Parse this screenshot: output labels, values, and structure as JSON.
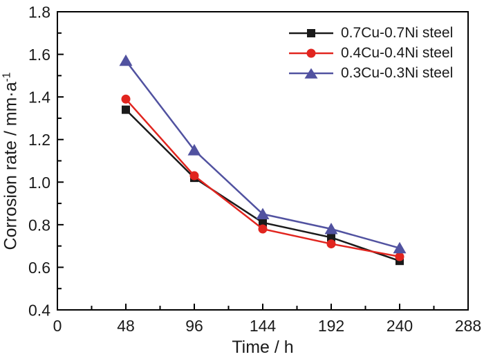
{
  "figure": {
    "background": "#ffffff",
    "axis_color": "#000000",
    "text_color": "#1a1a1a"
  },
  "chart_data": {
    "type": "line",
    "title": "",
    "xlabel": "Time / h",
    "ylabel": "Corrosion rate / mm·a⁻¹",
    "ylabel_base": "Corrosion rate / mm·a",
    "ylabel_sup": "-1",
    "x": [
      48,
      96,
      144,
      192,
      240
    ],
    "xlim": [
      0,
      288
    ],
    "ylim": [
      0.4,
      1.8
    ],
    "x_tick_values": [
      0,
      48,
      96,
      144,
      192,
      240,
      288
    ],
    "x_tick_labels": [
      "0",
      "48",
      "96",
      "144",
      "192",
      "240",
      "288"
    ],
    "x_minor_ticks": [
      24,
      72,
      120,
      168,
      216,
      264
    ],
    "y_tick_values": [
      0.4,
      0.6,
      0.8,
      1.0,
      1.2,
      1.4,
      1.6,
      1.8
    ],
    "y_tick_labels": [
      "0.4",
      "0.6",
      "0.8",
      "1.0",
      "1.2",
      "1.4",
      "1.6",
      "1.8"
    ],
    "y_minor_ticks": [
      0.5,
      0.7,
      0.9,
      1.1,
      1.3,
      1.5,
      1.7
    ],
    "grid": false,
    "legend_position": "top-right-inside",
    "series": [
      {
        "name": "0.7Cu-0.7Ni steel",
        "marker": "square",
        "color": "#1a1a1a",
        "values": [
          1.34,
          1.02,
          0.81,
          0.74,
          0.63
        ]
      },
      {
        "name": "0.4Cu-0.4Ni steel",
        "marker": "circle",
        "color": "#e1251f",
        "values": [
          1.39,
          1.03,
          0.78,
          0.71,
          0.65
        ]
      },
      {
        "name": "0.3Cu-0.3Ni steel",
        "marker": "triangle",
        "color": "#5152a0",
        "values": [
          1.57,
          1.15,
          0.85,
          0.78,
          0.69
        ]
      }
    ]
  }
}
